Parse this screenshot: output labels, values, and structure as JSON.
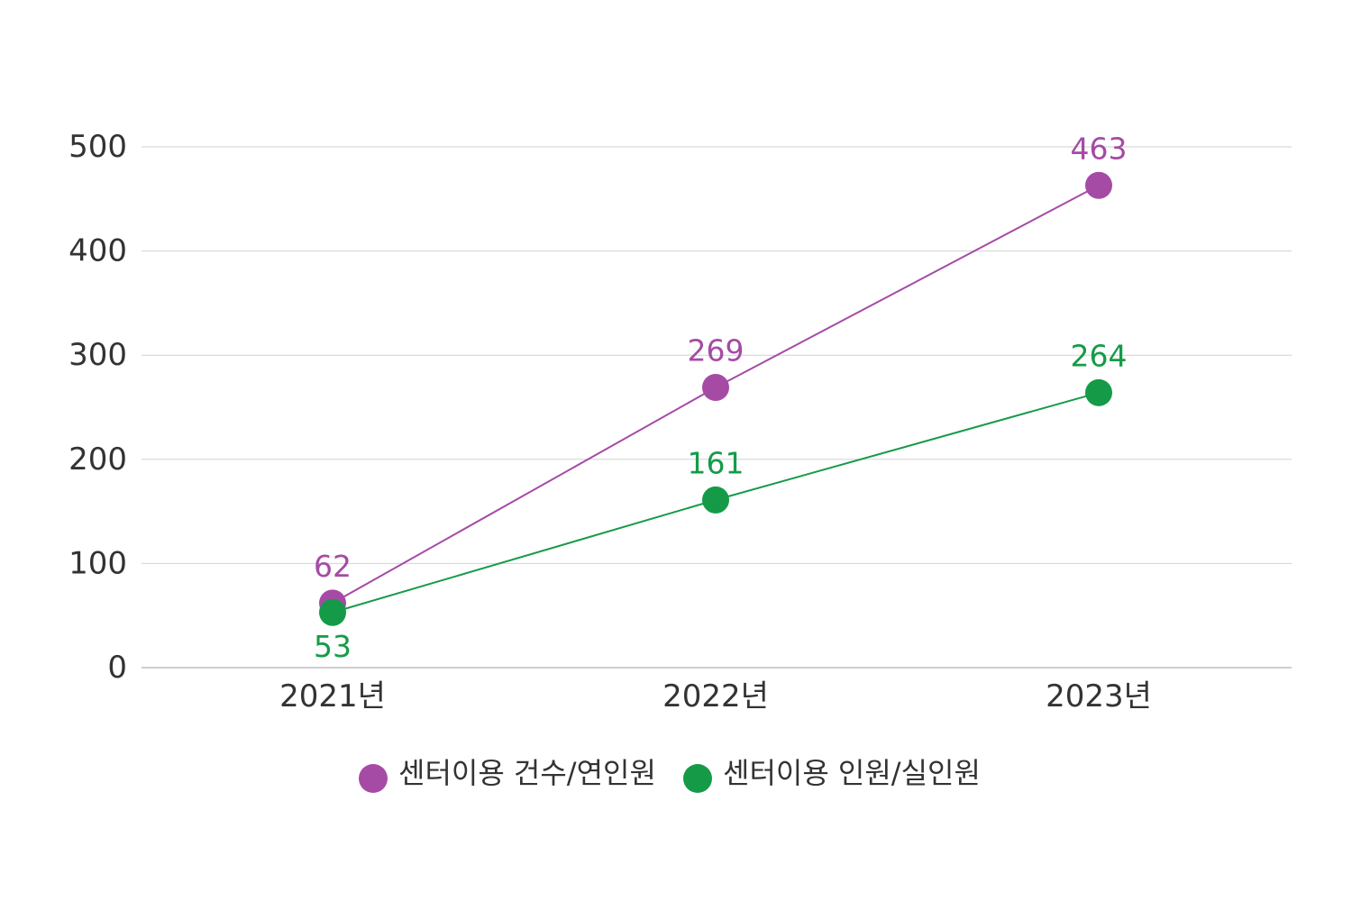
{
  "chart_data": {
    "type": "line",
    "title": "",
    "xlabel": "",
    "ylabel": "",
    "categories": [
      "2021년",
      "2022년",
      "2023년"
    ],
    "ylim": [
      0,
      500
    ],
    "yticks": [
      0,
      100,
      200,
      300,
      400,
      500
    ],
    "grid": true,
    "legend_position": "bottom-center",
    "series": [
      {
        "name": "센터이용 건수/연인원",
        "values": [
          62,
          269,
          463
        ],
        "labels": [
          "62",
          "269",
          "463"
        ],
        "color": "#a54ba5"
      },
      {
        "name": "센터이용 인원/실인원",
        "values": [
          53,
          161,
          264
        ],
        "labels": [
          "53",
          "161",
          "264"
        ],
        "color": "#159b48"
      }
    ]
  }
}
